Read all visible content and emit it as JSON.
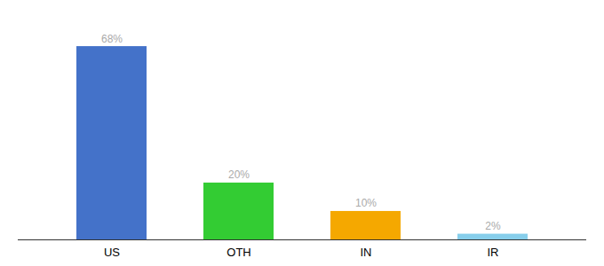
{
  "chart_data": {
    "type": "bar",
    "categories": [
      "US",
      "OTH",
      "IN",
      "IR"
    ],
    "values": [
      68,
      20,
      10,
      2
    ],
    "value_labels": [
      "68%",
      "20%",
      "10%",
      "2%"
    ],
    "colors": [
      "#4472c9",
      "#33cc33",
      "#f5a800",
      "#87ceeb"
    ],
    "ylim": [
      0,
      78
    ],
    "grid": false,
    "tick_labels": "x",
    "data_labels": true
  }
}
